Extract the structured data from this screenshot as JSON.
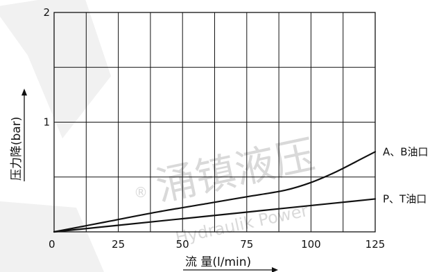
{
  "chart_data": {
    "type": "line",
    "title": "",
    "xlabel": "流 量(l/min)",
    "ylabel": "压力降(bar)",
    "xlim": [
      0,
      125
    ],
    "ylim": [
      0,
      2
    ],
    "x_ticks": [
      0,
      25,
      50,
      75,
      100,
      125
    ],
    "y_ticks": [
      1,
      2
    ],
    "grid": true,
    "series": [
      {
        "name": "A、B油口",
        "x": [
          0,
          20,
          40,
          60,
          75,
          90,
          100,
          110,
          120,
          125
        ],
        "y": [
          0,
          0.09,
          0.18,
          0.26,
          0.32,
          0.38,
          0.45,
          0.55,
          0.67,
          0.73
        ]
      },
      {
        "name": "P、T油口",
        "x": [
          0,
          25,
          50,
          75,
          100,
          125
        ],
        "y": [
          0,
          0.06,
          0.12,
          0.18,
          0.24,
          0.3
        ]
      }
    ]
  },
  "watermark": {
    "brand_cn": "涌镇液压",
    "brand_en": "Hydraulik Power",
    "registered": "®"
  }
}
